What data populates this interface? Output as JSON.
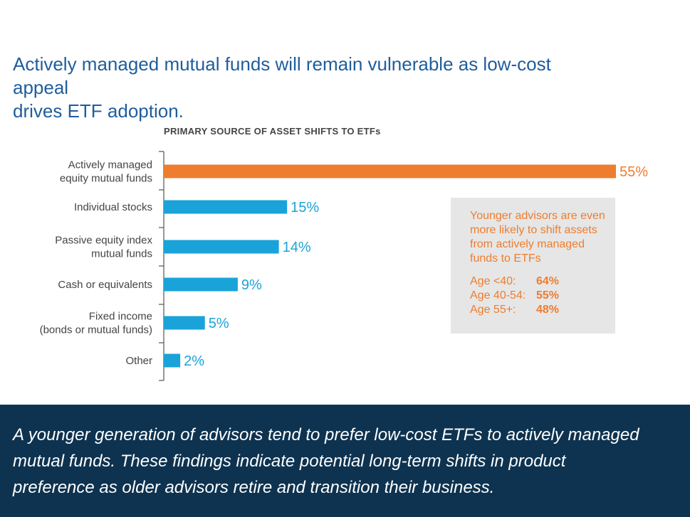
{
  "headline": "Actively managed mutual funds will remain vulnerable as low-cost appeal\ndrives ETF adoption.",
  "chart_data": {
    "type": "bar",
    "orientation": "horizontal",
    "title": "PRIMARY SOURCE OF ASSET SHIFTS TO ETFs",
    "categories": [
      "Actively managed\nequity mutual funds",
      "Individual stocks",
      "Passive equity index\nmutual funds",
      "Cash or equivalents",
      "Fixed income\n(bonds or mutual funds)",
      "Other"
    ],
    "values": [
      55,
      15,
      14,
      9,
      5,
      2
    ],
    "value_labels": [
      "55%",
      "15%",
      "14%",
      "9%",
      "5%",
      "2%"
    ],
    "unit": "%",
    "xlim": [
      0,
      55
    ],
    "grid": false,
    "colors": [
      "#ee7d2f",
      "#1aa3d8",
      "#1aa3d8",
      "#1aa3d8",
      "#1aa3d8",
      "#1aa3d8"
    ]
  },
  "callout": {
    "text": "Younger advisors are even more likely to shift assets from actively managed funds to ETFs",
    "rows": [
      {
        "label": "Age <40:",
        "value": "64%"
      },
      {
        "label": "Age 40-54:",
        "value": "55%"
      },
      {
        "label": "Age 55+:",
        "value": "48%"
      }
    ]
  },
  "footer": {
    "text": "A younger generation of advisors tend to prefer low-cost ETFs to actively managed\nmutual funds. These findings indicate potential long-term shifts in product\npreference as older advisors retire and transition their business."
  },
  "colors": {
    "headline": "#1f5d9e",
    "orange": "#ee7d2f",
    "blue": "#1aa3d8",
    "footer_bg": "#0e3350",
    "callout_bg": "#e6e6e6"
  }
}
